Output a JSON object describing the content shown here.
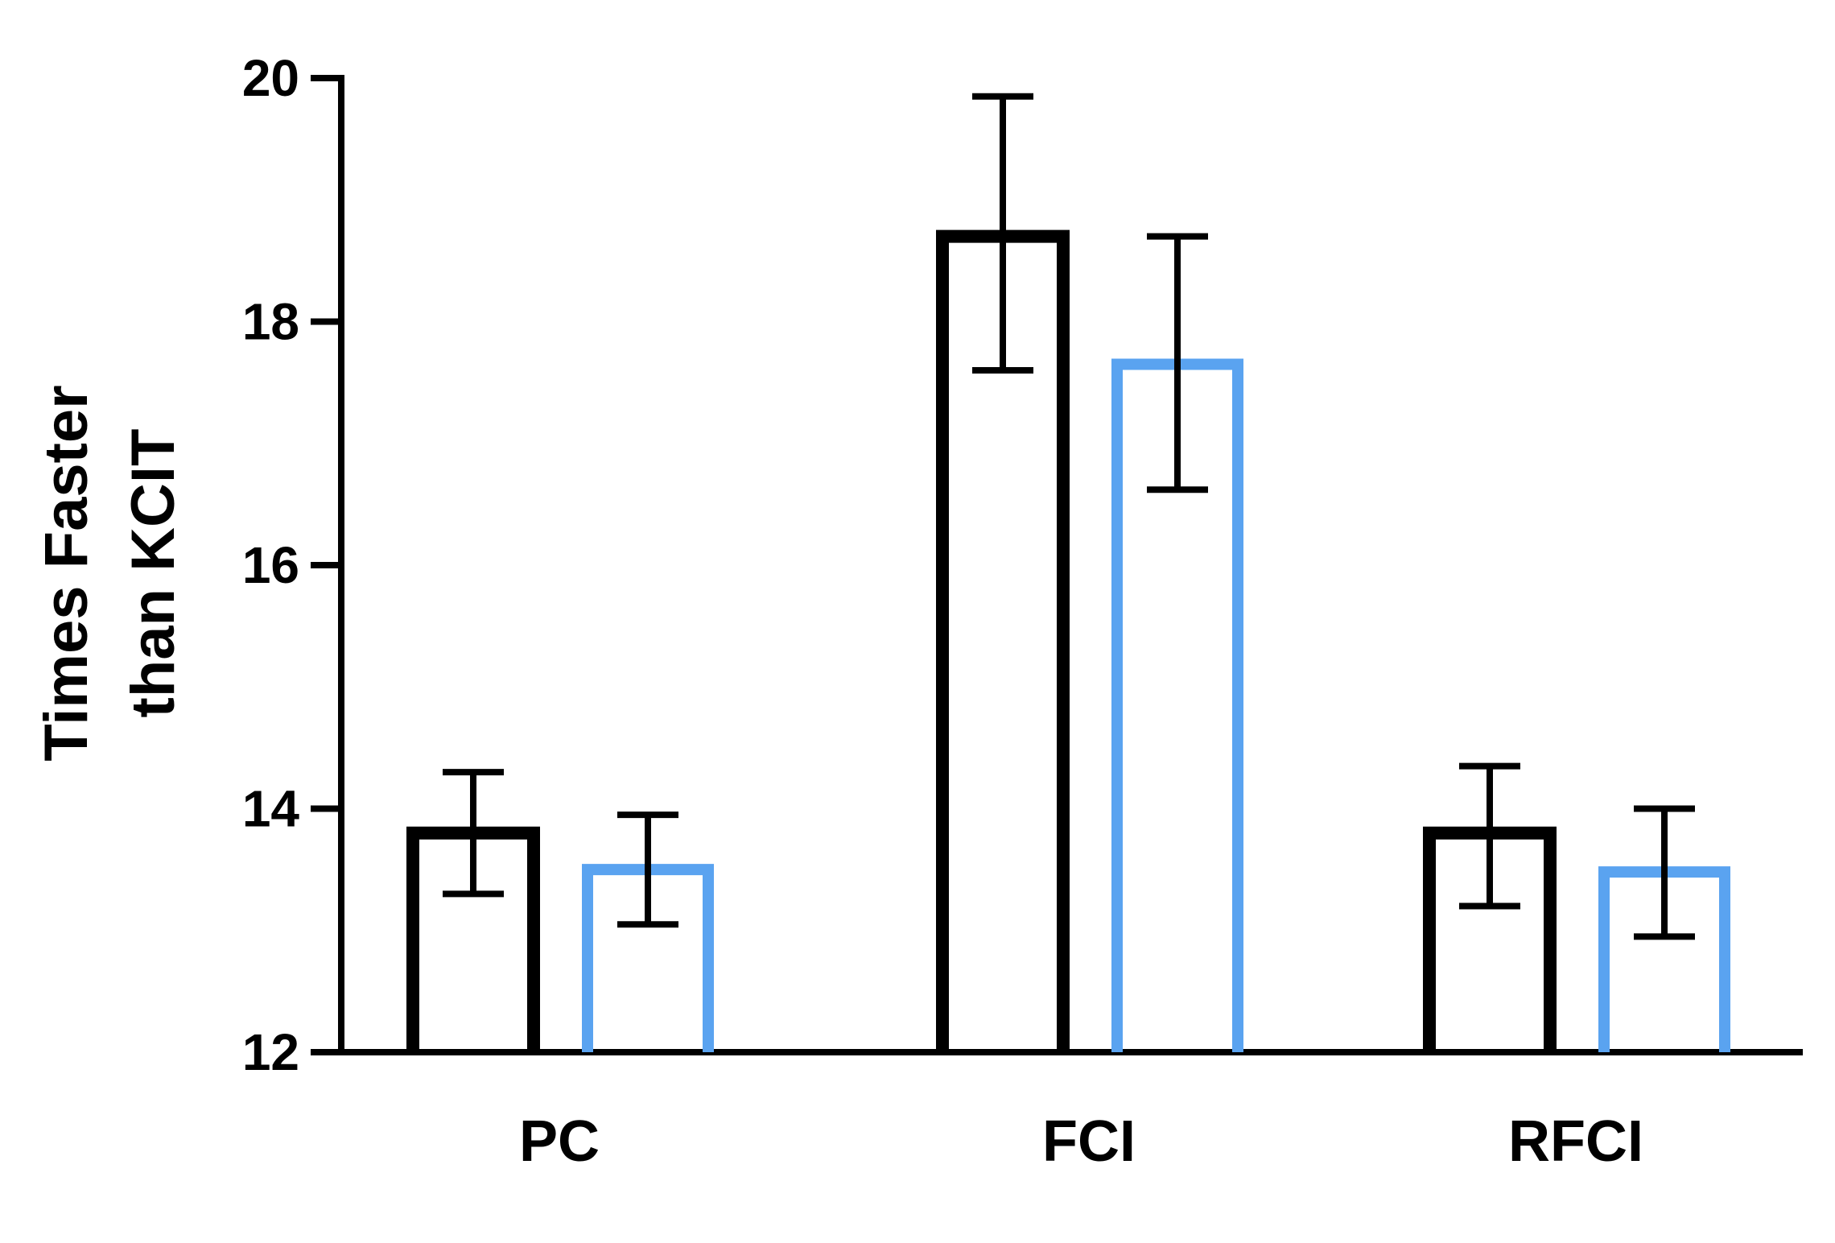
{
  "chart_data": {
    "type": "bar",
    "title": "",
    "xlabel": "",
    "ylabel_lines": [
      "Times Faster",
      "than KCIT"
    ],
    "ylim": [
      12,
      20
    ],
    "yticks": [
      "12",
      "14",
      "16",
      "18",
      "20"
    ],
    "categories": [
      "PC",
      "FCI",
      "RFCI"
    ],
    "series": [
      {
        "color": "#000000",
        "values": [
          13.8,
          18.7,
          13.8
        ],
        "err_low": [
          13.3,
          17.6,
          13.2
        ],
        "err_high": [
          14.3,
          19.85,
          14.35
        ]
      },
      {
        "color": "#5aa3f0",
        "values": [
          13.5,
          17.65,
          13.48
        ],
        "err_low": [
          13.05,
          16.62,
          12.95
        ],
        "err_high": [
          13.95,
          18.7,
          14.0
        ]
      }
    ],
    "grid": false,
    "legend": "none"
  }
}
